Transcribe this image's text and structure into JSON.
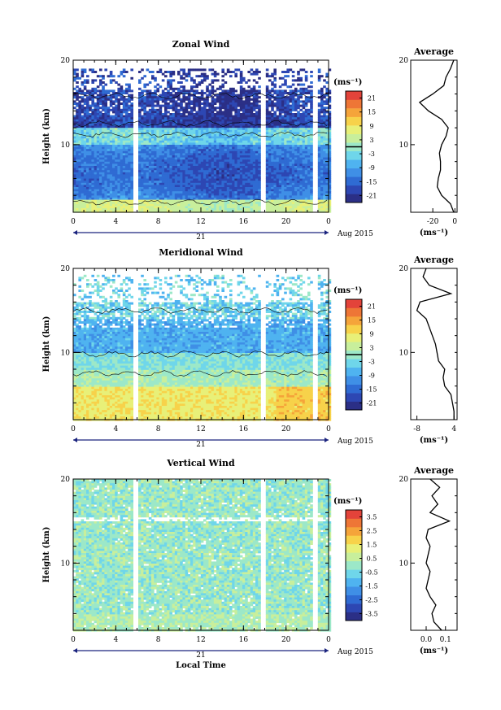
{
  "colors": {
    "palette": [
      "#2b2f86",
      "#2d47b3",
      "#2f6bd3",
      "#3f8fe6",
      "#4fb3f0",
      "#6fd6ea",
      "#9ce8c8",
      "#c8ef9c",
      "#e8f078",
      "#f7d24a",
      "#f5a43a",
      "#ee7636",
      "#e3433a"
    ],
    "frame": "#000000",
    "time_axis": "#1a237e"
  },
  "chart_data": [
    {
      "type": "heatmap",
      "title": "Zonal Wind",
      "ylabel": "Height (km)",
      "xlabel": "",
      "x_ticks": [
        "0",
        "4",
        "8",
        "12",
        "16",
        "20",
        "0"
      ],
      "xlim": [
        0,
        24
      ],
      "y_ticks": [
        "20",
        "10"
      ],
      "ylim": [
        2,
        20
      ],
      "date_day": "21",
      "date_month": "Aug 2015",
      "colorbar": {
        "unit": "(ms⁻¹)",
        "ticks": [
          "21",
          "15",
          "9",
          "3",
          "-3",
          "-9",
          "-15",
          "-21"
        ],
        "range": [
          -24,
          24
        ],
        "contour_level": 0
      },
      "profile": {
        "title": "Average",
        "x_ticks": [
          "-20",
          "0"
        ],
        "xlim": [
          -40,
          2
        ],
        "xlabel": "(ms⁻¹)",
        "y_ticks": [
          "20",
          "10"
        ],
        "heights": [
          2,
          3,
          4,
          5,
          6,
          7,
          8,
          9,
          10,
          11,
          12,
          13,
          14,
          15,
          16,
          17,
          18,
          19,
          20
        ],
        "values": [
          -1,
          -4,
          -12,
          -16,
          -15,
          -13,
          -13,
          -14,
          -12,
          -8,
          -6,
          -12,
          -24,
          -32,
          -20,
          -10,
          -8,
          -4,
          -1
        ]
      }
    },
    {
      "type": "heatmap",
      "title": "Meridional Wind",
      "ylabel": "Height (km)",
      "xlabel": "",
      "x_ticks": [
        "0",
        "4",
        "8",
        "12",
        "16",
        "20",
        "0"
      ],
      "xlim": [
        0,
        24
      ],
      "y_ticks": [
        "20",
        "10"
      ],
      "ylim": [
        2,
        20
      ],
      "date_day": "21",
      "date_month": "Aug 2015",
      "colorbar": {
        "unit": "(ms⁻¹)",
        "ticks": [
          "21",
          "15",
          "9",
          "3",
          "-3",
          "-9",
          "-15",
          "-21"
        ],
        "range": [
          -24,
          24
        ],
        "contour_level": 0
      },
      "profile": {
        "title": "Average",
        "x_ticks": [
          "-8",
          "4"
        ],
        "xlim": [
          -10,
          5
        ],
        "xlabel": "(ms⁻¹)",
        "y_ticks": [
          "20",
          "10"
        ],
        "heights": [
          2,
          3,
          4,
          5,
          6,
          7,
          8,
          9,
          10,
          11,
          12,
          13,
          14,
          15,
          16,
          17,
          18,
          19,
          20
        ],
        "values": [
          4,
          4,
          3.5,
          3,
          1,
          0.5,
          1,
          -1,
          -1.5,
          -2,
          -3,
          -4,
          -5,
          -8,
          -7,
          3,
          -4,
          -6,
          -5
        ]
      }
    },
    {
      "type": "heatmap",
      "title": "Vertical Wind",
      "ylabel": "Height (km)",
      "xlabel": "Local Time",
      "x_ticks": [
        "0",
        "4",
        "8",
        "12",
        "16",
        "20",
        "0"
      ],
      "xlim": [
        0,
        24
      ],
      "y_ticks": [
        "20",
        "10"
      ],
      "ylim": [
        2,
        20
      ],
      "date_day": "21",
      "date_month": "Aug 2015",
      "colorbar": {
        "unit": "(ms⁻¹)",
        "ticks": [
          "3.5",
          "2.5",
          "1.5",
          "0.5",
          "-0.5",
          "-1.5",
          "-2.5",
          "-3.5"
        ],
        "range": [
          -4,
          4
        ],
        "contour_level": null
      },
      "profile": {
        "title": "Average",
        "x_ticks": [
          "0.0",
          "0.1"
        ],
        "xlim": [
          -0.08,
          0.16
        ],
        "xlabel": "(ms⁻¹)",
        "y_ticks": [
          "20",
          "10"
        ],
        "heights": [
          2,
          3,
          4,
          5,
          6,
          7,
          8,
          9,
          10,
          11,
          12,
          13,
          14,
          15,
          16,
          17,
          18,
          19,
          20
        ],
        "values": [
          0.08,
          0.04,
          0.03,
          0.05,
          0.02,
          0.0,
          0.01,
          0.02,
          0.0,
          0.01,
          0.02,
          0.0,
          0.01,
          0.12,
          0.02,
          0.06,
          0.03,
          0.07,
          0.02
        ]
      }
    }
  ]
}
